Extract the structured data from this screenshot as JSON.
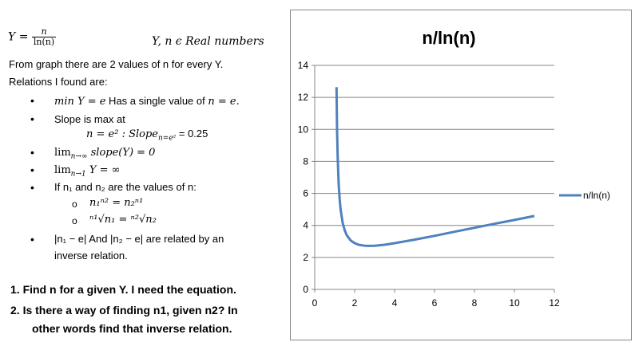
{
  "doc": {
    "eq_y_lhs": "Y =",
    "eq_y_num": "n",
    "eq_y_den": "ln(n)",
    "y_real": "Y, n ϵ Real numbers",
    "line1": "From graph there are 2 values of n for every Y.",
    "line2": "Relations I found are:",
    "b1_math": "min Y = e",
    "b1_text": " Has a single value of ",
    "b1_math2": "n = e.",
    "b2_text": "Slope is max at",
    "b2_eq": "n = e² : Slope",
    "b2_sub": "n=e²",
    "b2_val": " = 0.25",
    "b3_lim": "lim",
    "b3_sub": "n→∞",
    "b3_rest": " slope(Y) = 0",
    "b4_lim": "lim",
    "b4_sub": "n→1",
    "b4_rest": " Y = ∞",
    "b5_text": "If n₁ and n₂ are the values of n:",
    "c1_text": "n₁ⁿ² = n₂ⁿ¹",
    "c2_text": "ⁿ¹√n₁ = ⁿ²√n₂",
    "b6_text1": "|n₁ − e| And |n₂ − e| are related by an",
    "b6_text2": "inverse relation.",
    "q1": "1.   Find n for a given Y. I need the equation.",
    "q2a": "2.   Is there a way of finding n1, given n2? In",
    "q2b": "other words find that inverse relation.",
    "bullet_char": "•",
    "circle_char": "o"
  },
  "chart_data": {
    "type": "line",
    "title": "n/ln(n)",
    "xlabel": "",
    "ylabel": "",
    "xlim": [
      0,
      12
    ],
    "ylim": [
      0,
      14
    ],
    "x_ticks": [
      "0",
      "2",
      "4",
      "6",
      "8",
      "10",
      "12"
    ],
    "y_ticks": [
      "0",
      "2",
      "4",
      "6",
      "8",
      "10",
      "12",
      "14"
    ],
    "grid": "horizontal",
    "legend_position": "right",
    "series": [
      {
        "name": "n/ln(n)",
        "color": "#4f81bd",
        "x": [
          1.09,
          1.12,
          1.15,
          1.2,
          1.25,
          1.3,
          1.4,
          1.5,
          1.6,
          1.8,
          2.0,
          2.2,
          2.5,
          2.718,
          3.0,
          3.5,
          4.0,
          5.0,
          6.0,
          7.0,
          8.0,
          9.0,
          10.0,
          11.0
        ],
        "y": [
          12.64,
          9.88,
          8.23,
          6.58,
          5.6,
          4.96,
          4.16,
          3.7,
          3.4,
          3.06,
          2.89,
          2.79,
          2.73,
          2.72,
          2.73,
          2.79,
          2.89,
          3.11,
          3.35,
          3.6,
          3.85,
          4.1,
          4.34,
          4.59
        ]
      }
    ]
  }
}
